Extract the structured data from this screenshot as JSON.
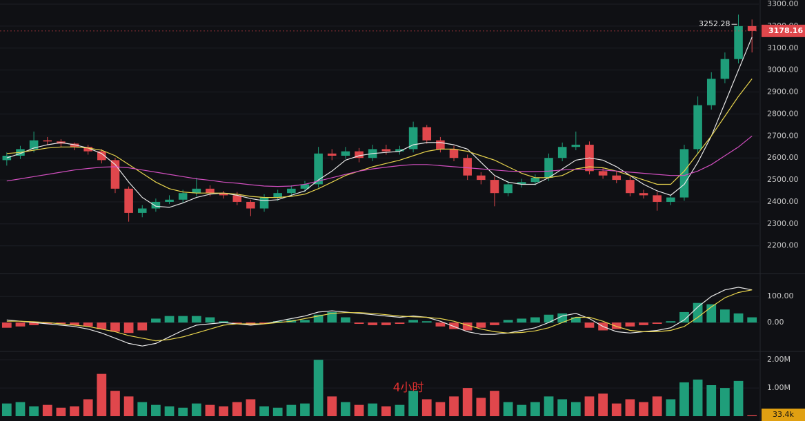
{
  "chart_data": [
    {
      "type": "candlestick",
      "up_color": "#1f9e7a",
      "down_color": "#e0474c",
      "open": [
        2590,
        2610,
        2640,
        2680,
        2675,
        2665,
        2650,
        2630,
        2590,
        2460,
        2350,
        2370,
        2400,
        2410,
        2440,
        2460,
        2440,
        2430,
        2400,
        2370,
        2420,
        2440,
        2460,
        2480,
        2620,
        2610,
        2630,
        2600,
        2640,
        2630,
        2640,
        2740,
        2680,
        2640,
        2600,
        2520,
        2500,
        2440,
        2480,
        2490,
        2510,
        2600,
        2650,
        2660,
        2540,
        2520,
        2500,
        2440,
        2430,
        2400,
        2420,
        2640,
        2840,
        2960,
        3050,
        3200
      ],
      "high": [
        2625,
        2655,
        2720,
        2695,
        2685,
        2670,
        2660,
        2640,
        2600,
        2470,
        2385,
        2415,
        2430,
        2455,
        2510,
        2475,
        2450,
        2445,
        2410,
        2435,
        2455,
        2475,
        2495,
        2650,
        2640,
        2650,
        2645,
        2660,
        2660,
        2655,
        2765,
        2750,
        2695,
        2655,
        2615,
        2535,
        2515,
        2495,
        2505,
        2525,
        2620,
        2670,
        2720,
        2675,
        2555,
        2540,
        2515,
        2455,
        2445,
        2430,
        2660,
        2880,
        2990,
        3080,
        3252.28,
        3230
      ],
      "low": [
        2565,
        2595,
        2625,
        2660,
        2650,
        2635,
        2615,
        2575,
        2440,
        2310,
        2330,
        2355,
        2390,
        2395,
        2425,
        2425,
        2415,
        2385,
        2335,
        2355,
        2405,
        2425,
        2445,
        2465,
        2590,
        2595,
        2580,
        2585,
        2615,
        2615,
        2625,
        2665,
        2625,
        2585,
        2500,
        2480,
        2380,
        2425,
        2465,
        2475,
        2495,
        2585,
        2635,
        2525,
        2505,
        2485,
        2425,
        2415,
        2360,
        2385,
        2405,
        2620,
        2820,
        2940,
        3030,
        3080
      ],
      "close": [
        2610,
        2640,
        2680,
        2675,
        2665,
        2650,
        2630,
        2590,
        2460,
        2350,
        2370,
        2400,
        2410,
        2440,
        2460,
        2440,
        2430,
        2400,
        2370,
        2420,
        2440,
        2460,
        2480,
        2620,
        2610,
        2630,
        2600,
        2640,
        2630,
        2640,
        2740,
        2680,
        2640,
        2600,
        2520,
        2500,
        2440,
        2480,
        2490,
        2510,
        2600,
        2650,
        2660,
        2540,
        2520,
        2500,
        2440,
        2430,
        2400,
        2420,
        2640,
        2840,
        2960,
        3050,
        3200,
        3178.16
      ],
      "series": [
        {
          "color": "#e8e8e8",
          "values": [
            2600,
            2620,
            2645,
            2660,
            2670,
            2660,
            2645,
            2620,
            2570,
            2490,
            2420,
            2380,
            2375,
            2395,
            2420,
            2435,
            2440,
            2430,
            2415,
            2405,
            2410,
            2430,
            2450,
            2500,
            2540,
            2590,
            2610,
            2620,
            2625,
            2630,
            2660,
            2670,
            2670,
            2660,
            2640,
            2580,
            2520,
            2490,
            2480,
            2480,
            2510,
            2550,
            2590,
            2600,
            2590,
            2560,
            2520,
            2480,
            2450,
            2430,
            2480,
            2580,
            2700,
            2850,
            3000,
            3150
          ]
        },
        {
          "color": "#e8d44d",
          "values": [
            2620,
            2625,
            2635,
            2645,
            2650,
            2650,
            2645,
            2635,
            2610,
            2570,
            2530,
            2490,
            2460,
            2445,
            2440,
            2440,
            2440,
            2435,
            2425,
            2420,
            2420,
            2425,
            2435,
            2460,
            2490,
            2520,
            2540,
            2560,
            2575,
            2590,
            2610,
            2630,
            2640,
            2640,
            2630,
            2610,
            2590,
            2560,
            2530,
            2510,
            2510,
            2520,
            2550,
            2560,
            2555,
            2540,
            2520,
            2500,
            2480,
            2480,
            2540,
            2620,
            2700,
            2790,
            2880,
            2960
          ]
        },
        {
          "color": "#d24fc0",
          "values": [
            2495,
            2505,
            2515,
            2525,
            2535,
            2545,
            2552,
            2558,
            2560,
            2555,
            2545,
            2535,
            2525,
            2515,
            2505,
            2498,
            2490,
            2485,
            2478,
            2472,
            2470,
            2472,
            2480,
            2495,
            2510,
            2525,
            2540,
            2550,
            2558,
            2565,
            2570,
            2570,
            2565,
            2560,
            2555,
            2550,
            2545,
            2540,
            2538,
            2538,
            2540,
            2545,
            2548,
            2548,
            2545,
            2540,
            2535,
            2530,
            2525,
            2520,
            2520,
            2540,
            2570,
            2610,
            2650,
            2700
          ]
        }
      ],
      "ylim": [
        2080,
        3300
      ],
      "yticks": [
        {
          "value": 2200,
          "label": "2200.00"
        },
        {
          "value": 2300,
          "label": "2300.00"
        },
        {
          "value": 2400,
          "label": "2400.00"
        },
        {
          "value": 2500,
          "label": "2500.00"
        },
        {
          "value": 2600,
          "label": "2600.00"
        },
        {
          "value": 2700,
          "label": "2700.00"
        },
        {
          "value": 2800,
          "label": "2800.00"
        },
        {
          "value": 2900,
          "label": "2900.00"
        },
        {
          "value": 3000,
          "label": "3000.00"
        },
        {
          "value": 3100,
          "label": "3100.00"
        },
        {
          "value": 3200,
          "label": "3200.00"
        },
        {
          "value": 3300,
          "label": "3300.00"
        }
      ],
      "grid": true
    },
    {
      "type": "macd",
      "up_color": "#1f9e7a",
      "down_color": "#e0474c",
      "values": [
        -20,
        -15,
        -10,
        -5,
        -5,
        -10,
        -15,
        -25,
        -35,
        -40,
        -30,
        15,
        25,
        25,
        25,
        20,
        5,
        -5,
        -10,
        -5,
        5,
        10,
        10,
        30,
        40,
        20,
        -5,
        -10,
        -10,
        -5,
        10,
        5,
        -15,
        -25,
        -30,
        -20,
        -10,
        10,
        15,
        20,
        30,
        35,
        20,
        -20,
        -30,
        -25,
        -15,
        -10,
        -5,
        5,
        40,
        75,
        70,
        50,
        35,
        20
      ],
      "series": [
        {
          "color": "#e8e8e8",
          "values": [
            10,
            5,
            0,
            -5,
            -10,
            -15,
            -25,
            -40,
            -60,
            -80,
            -90,
            -80,
            -55,
            -30,
            -10,
            -5,
            0,
            -5,
            -10,
            -5,
            5,
            15,
            25,
            40,
            45,
            40,
            35,
            30,
            25,
            20,
            25,
            20,
            5,
            -15,
            -35,
            -45,
            -45,
            -40,
            -30,
            -20,
            0,
            25,
            35,
            15,
            -15,
            -35,
            -40,
            -35,
            -30,
            -20,
            10,
            60,
            100,
            125,
            135,
            125
          ]
        },
        {
          "color": "#e8d44d",
          "values": [
            5,
            5,
            3,
            0,
            -5,
            -10,
            -15,
            -25,
            -35,
            -50,
            -60,
            -70,
            -65,
            -55,
            -40,
            -25,
            -10,
            -5,
            -5,
            -5,
            0,
            5,
            15,
            25,
            35,
            38,
            38,
            35,
            30,
            25,
            22,
            20,
            15,
            5,
            -10,
            -25,
            -35,
            -40,
            -38,
            -32,
            -20,
            0,
            20,
            20,
            5,
            -15,
            -30,
            -35,
            -35,
            -30,
            -15,
            20,
            60,
            95,
            115,
            125
          ]
        }
      ],
      "ylim": [
        -100,
        185
      ],
      "yticks": [
        {
          "value": 0,
          "label": "0.00"
        },
        {
          "value": 100,
          "label": "100.00"
        }
      ]
    },
    {
      "type": "bar",
      "up_color": "#1f9e7a",
      "down_color": "#e0474c",
      "values": [
        450000,
        500000,
        350000,
        400000,
        300000,
        350000,
        600000,
        1500000,
        900000,
        700000,
        500000,
        400000,
        350000,
        300000,
        450000,
        400000,
        350000,
        500000,
        600000,
        350000,
        300000,
        400000,
        450000,
        2000000,
        700000,
        500000,
        400000,
        450000,
        350000,
        400000,
        900000,
        600000,
        500000,
        700000,
        1000000,
        650000,
        900000,
        500000,
        400000,
        500000,
        700000,
        600000,
        500000,
        700000,
        800000,
        450000,
        600000,
        500000,
        700000,
        600000,
        1200000,
        1300000,
        1100000,
        1000000,
        1250000,
        33400
      ],
      "value_labels": {
        "55": "33.4k"
      },
      "annotation": "4小时",
      "ylim": [
        0,
        2200000
      ],
      "yticks": [
        {
          "value": 1000000,
          "label": "1.00M"
        },
        {
          "value": 2000000,
          "label": "2.00M"
        }
      ]
    }
  ]
}
